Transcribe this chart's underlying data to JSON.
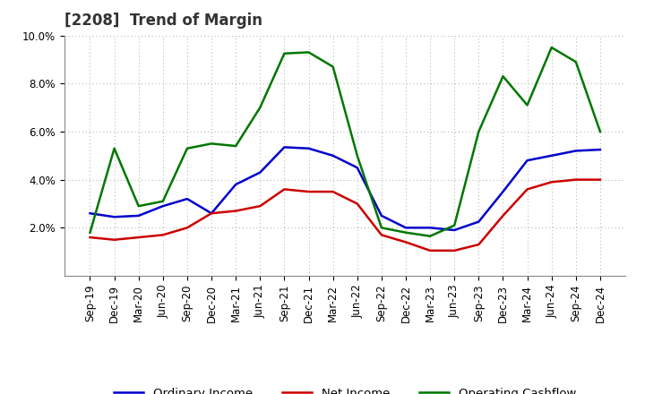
{
  "title": "[2208]  Trend of Margin",
  "x_labels": [
    "Sep-19",
    "Dec-19",
    "Mar-20",
    "Jun-20",
    "Sep-20",
    "Dec-20",
    "Mar-21",
    "Jun-21",
    "Sep-21",
    "Dec-21",
    "Mar-22",
    "Jun-22",
    "Sep-22",
    "Dec-22",
    "Mar-23",
    "Jun-23",
    "Sep-23",
    "Dec-23",
    "Mar-24",
    "Jun-24",
    "Sep-24",
    "Dec-24"
  ],
  "ordinary_income": [
    2.6,
    2.45,
    2.5,
    2.9,
    3.2,
    2.6,
    3.8,
    4.3,
    5.35,
    5.3,
    5.0,
    4.5,
    2.5,
    2.0,
    2.0,
    1.9,
    2.25,
    3.5,
    4.8,
    5.0,
    5.2,
    5.25
  ],
  "net_income": [
    1.6,
    1.5,
    1.6,
    1.7,
    2.0,
    2.6,
    2.7,
    2.9,
    3.6,
    3.5,
    3.5,
    3.0,
    1.7,
    1.4,
    1.05,
    1.05,
    1.3,
    2.5,
    3.6,
    3.9,
    4.0,
    4.0
  ],
  "operating_cashflow": [
    1.8,
    5.3,
    2.9,
    3.1,
    5.3,
    5.5,
    5.4,
    7.0,
    9.25,
    9.3,
    8.7,
    5.0,
    2.0,
    1.8,
    1.65,
    2.1,
    6.0,
    8.3,
    7.1,
    9.5,
    8.9,
    6.0
  ],
  "ylim": [
    0.0,
    10.0
  ],
  "yticks": [
    2.0,
    4.0,
    6.0,
    8.0,
    10.0
  ],
  "line_color_ordinary": "#0000cc",
  "line_color_net": "#cc0000",
  "line_color_cashflow": "#007700",
  "background_color": "#ffffff",
  "plot_bg_color": "#ffffff",
  "grid_color": "#aaaaaa",
  "title_fontsize": 12,
  "tick_fontsize": 8.5,
  "legend_fontsize": 9.5
}
